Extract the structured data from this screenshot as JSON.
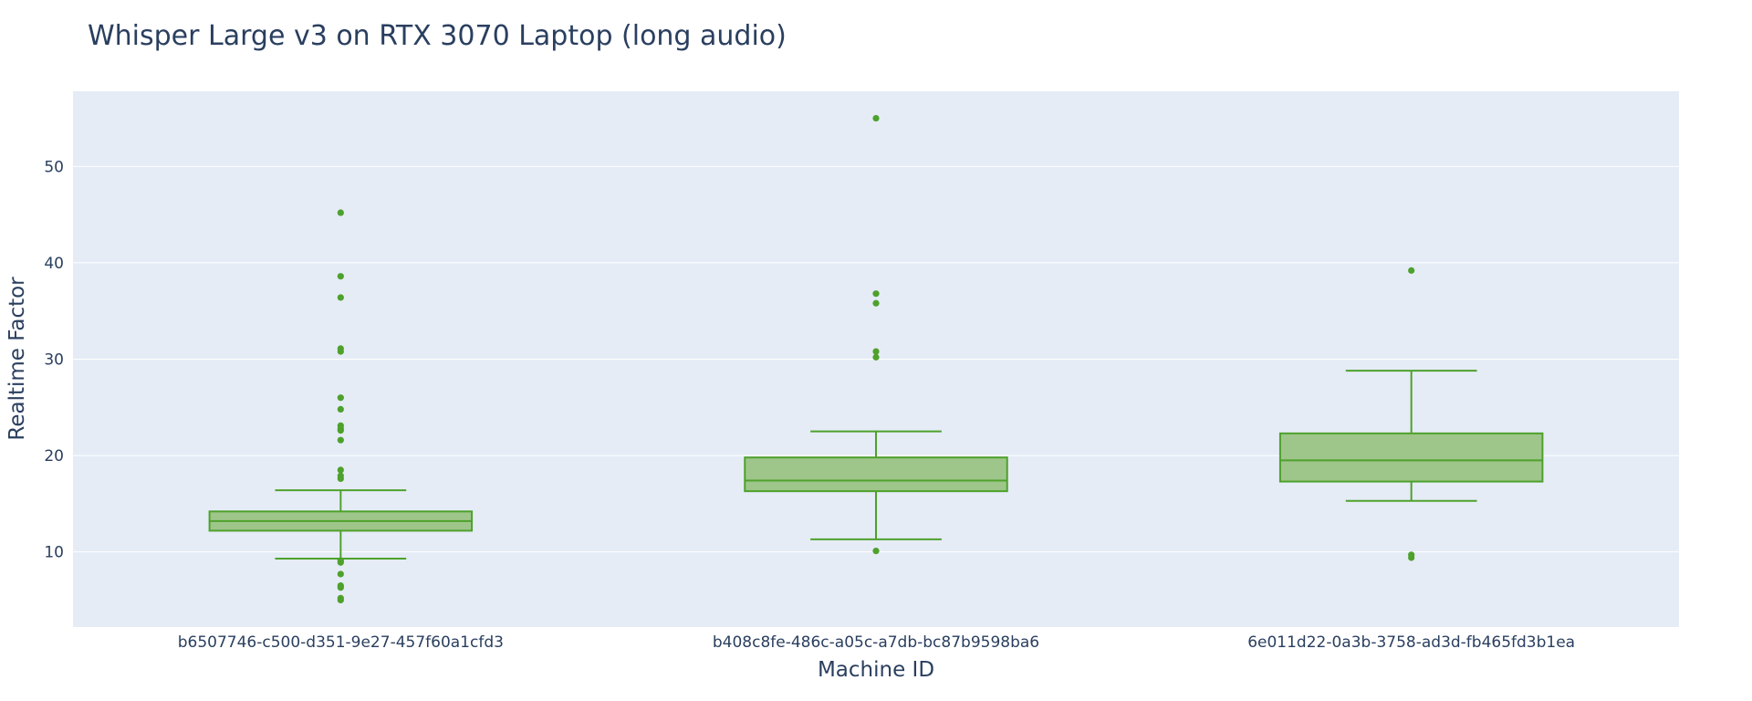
{
  "chart_data": {
    "type": "box",
    "title": "Whisper Large v3 on RTX 3070 Laptop (long audio)",
    "xlabel": "Machine ID",
    "ylabel": "Realtime Factor",
    "ylim": [
      2.2,
      57.8
    ],
    "yticks": [
      10,
      20,
      30,
      40,
      50
    ],
    "grid": true,
    "legend": "none",
    "colors": {
      "box_line": "#4ea12c",
      "box_fill": "#9ec68a",
      "plot_bg": "#e5ecf6",
      "grid": "#ffffff",
      "text": "#2a3f5f"
    },
    "categories": [
      "b6507746-c500-d351-9e27-457f60a1cfd3",
      "b408c8fe-486c-a05c-a7db-bc87b9598ba6",
      "6e011d22-0a3b-3758-ad3d-fb465fd3b1ea"
    ],
    "boxes": [
      {
        "category": "b6507746-c500-d351-9e27-457f60a1cfd3",
        "lower_fence": 9.3,
        "q1": 12.2,
        "median": 13.2,
        "q3": 14.2,
        "upper_fence": 16.4,
        "outliers": [
          45.2,
          38.6,
          36.4,
          31.1,
          30.8,
          26.0,
          24.8,
          23.1,
          22.8,
          22.6,
          21.6,
          18.5,
          17.9,
          17.6,
          9.1,
          8.9,
          7.7,
          6.5,
          6.3,
          5.2,
          5.0
        ]
      },
      {
        "category": "b408c8fe-486c-a05c-a7db-bc87b9598ba6",
        "lower_fence": 11.3,
        "q1": 16.3,
        "median": 17.4,
        "q3": 19.8,
        "upper_fence": 22.5,
        "outliers": [
          55.0,
          36.8,
          35.8,
          30.8,
          30.2,
          10.1
        ]
      },
      {
        "category": "6e011d22-0a3b-3758-ad3d-fb465fd3b1ea",
        "lower_fence": 15.3,
        "q1": 17.3,
        "median": 19.5,
        "q3": 22.3,
        "upper_fence": 28.8,
        "outliers": [
          39.2,
          9.7,
          9.4
        ]
      }
    ]
  }
}
